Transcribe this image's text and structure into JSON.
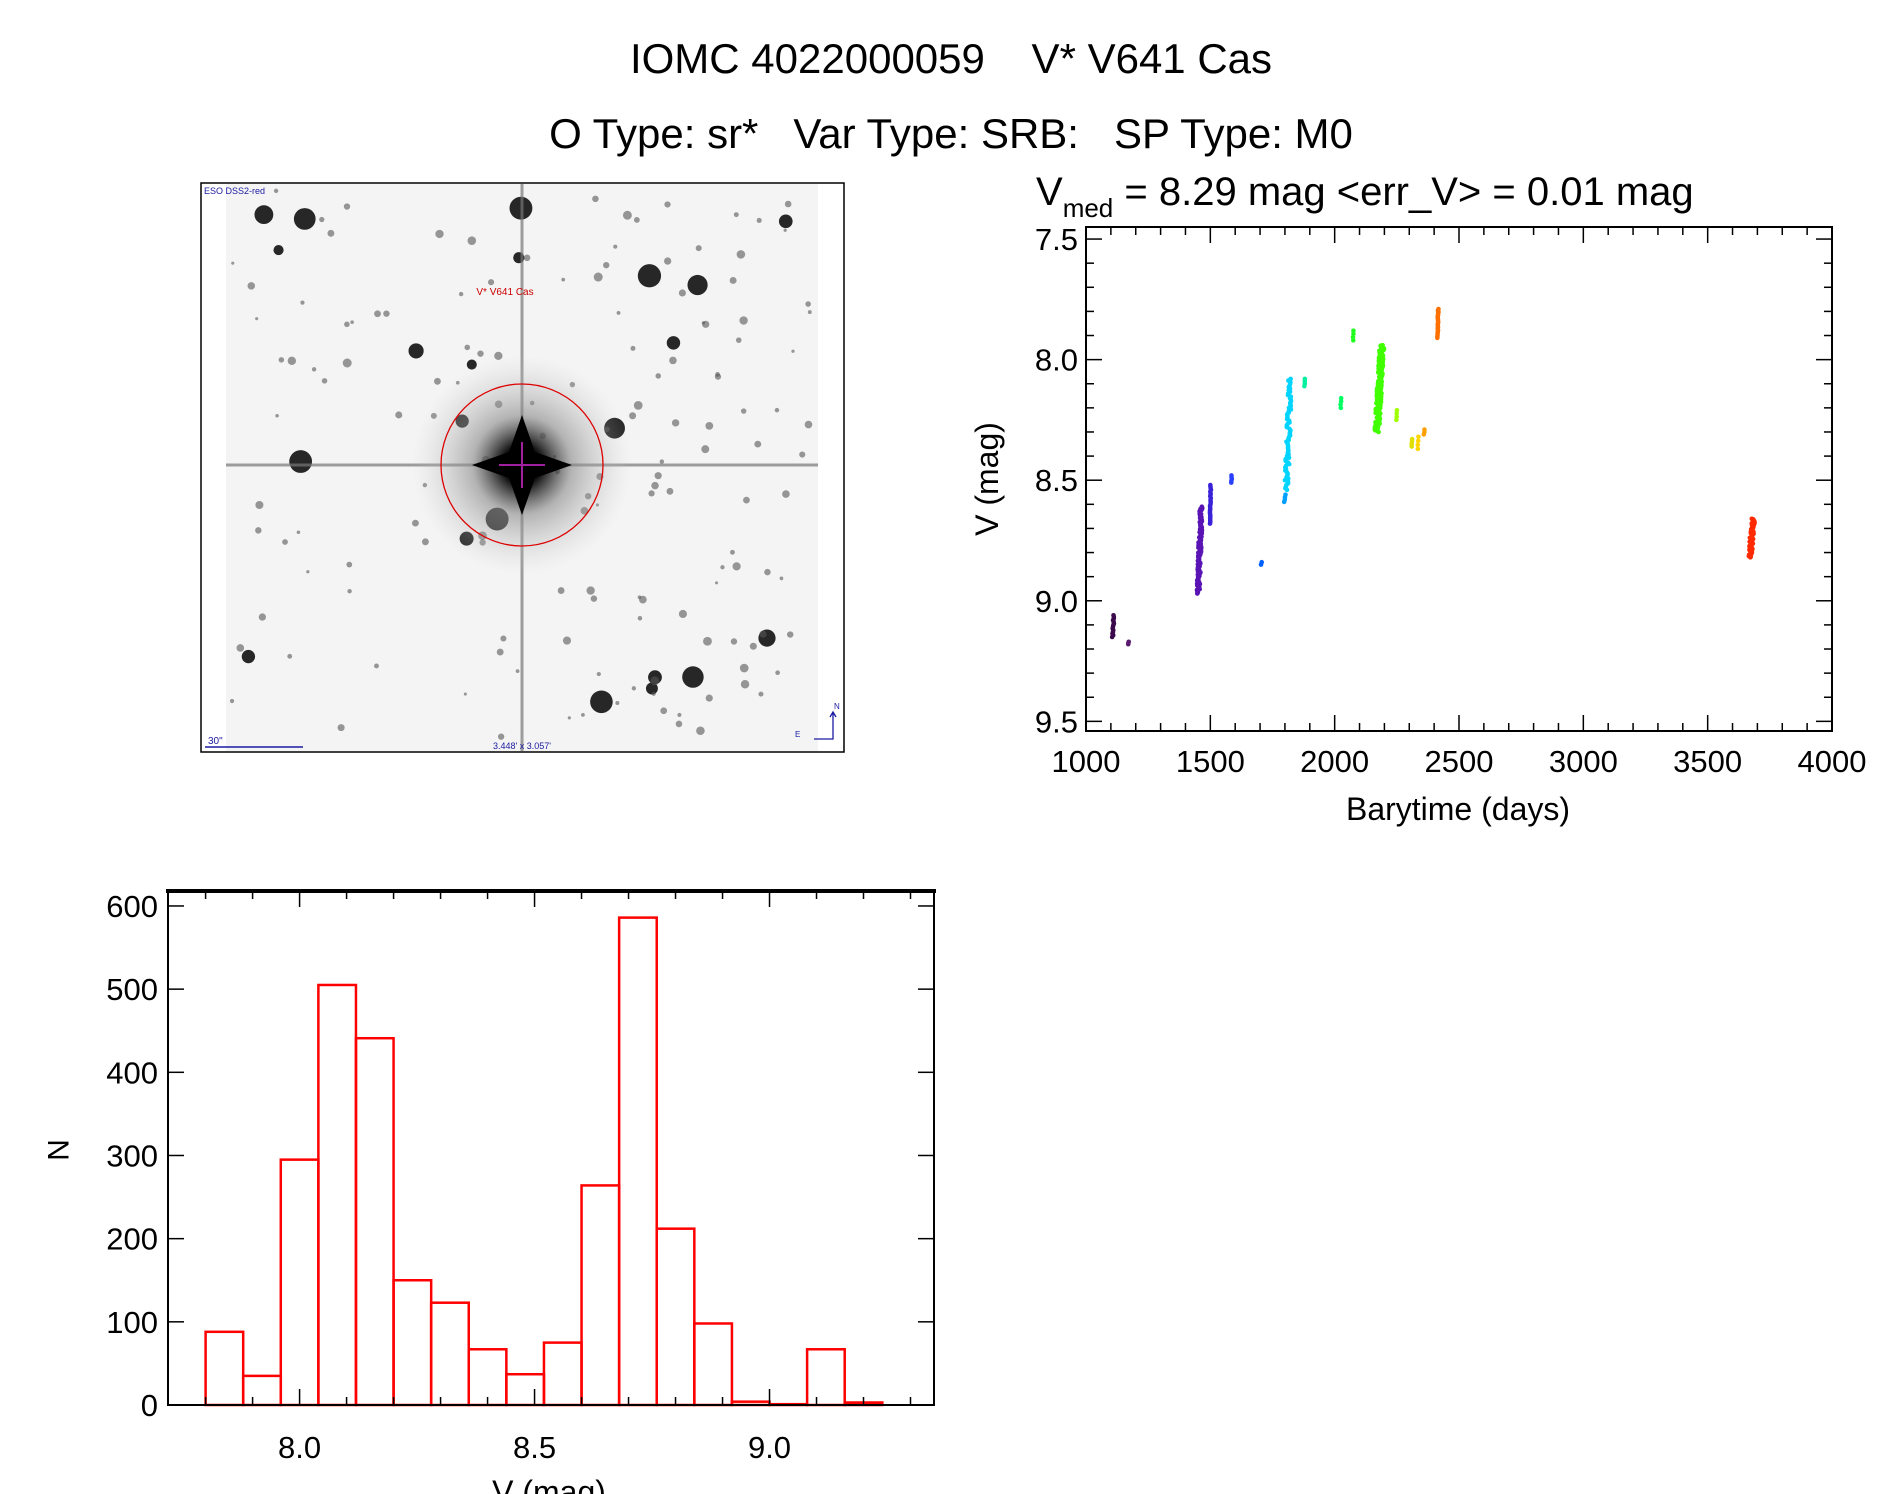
{
  "title": {
    "line1": "IOMC 4022000059    V* V641 Cas",
    "line2": "O Type: sr*   Var Type: SRB:   SP Type: M0"
  },
  "finder_image": {
    "survey_label": "ESO DSS2-red",
    "target_label": "V* V641 Cas",
    "scale_label": "30\"",
    "size_label": "3.448' x 3.057'",
    "north_label": "N",
    "east_label": "E"
  },
  "chart_data": [
    {
      "type": "scatter",
      "title_main": "V",
      "title_sub": "med",
      "title_rest": " = 8.29 mag <err_V> = 0.01 mag",
      "xlabel": "Barytime (days)",
      "ylabel": "V (mag)",
      "xlim": [
        1000,
        4000
      ],
      "ylim": [
        7.45,
        9.54
      ],
      "y_inverted": true,
      "xticks": [
        1000,
        1500,
        2000,
        2500,
        3000,
        3500,
        4000
      ],
      "xtick_labels": [
        "1000",
        "1500",
        "2000",
        "2500",
        "3000",
        "3500",
        "4000"
      ],
      "yticks": [
        7.5,
        8.0,
        8.5,
        9.0,
        9.5
      ],
      "ytick_labels": [
        "7.5",
        "8.0",
        "8.5",
        "9.0",
        "9.5"
      ],
      "clusters": [
        {
          "x": [
            1105,
            1115
          ],
          "y": [
            9.06,
            9.15
          ],
          "n": 14,
          "color": "#3c0a4c"
        },
        {
          "x": [
            1168,
            1172
          ],
          "y": [
            9.17,
            9.18
          ],
          "n": 3,
          "color": "#5a1a6e"
        },
        {
          "x": [
            1445,
            1470
          ],
          "y": [
            8.61,
            8.97
          ],
          "n": 120,
          "color": "#5a14b4"
        },
        {
          "x": [
            1497,
            1503
          ],
          "y": [
            8.52,
            8.68
          ],
          "n": 25,
          "color": "#3a22d8"
        },
        {
          "x": [
            1582,
            1588
          ],
          "y": [
            8.48,
            8.51
          ],
          "n": 5,
          "color": "#2a40ff"
        },
        {
          "x": [
            1703,
            1707
          ],
          "y": [
            8.84,
            8.85
          ],
          "n": 2,
          "color": "#0060ff"
        },
        {
          "x": [
            1797,
            1803
          ],
          "y": [
            8.56,
            8.59
          ],
          "n": 4,
          "color": "#00a0ff"
        },
        {
          "x": [
            1798,
            1830
          ],
          "y": [
            8.08,
            8.54
          ],
          "n": 70,
          "color": "#00d4ff"
        },
        {
          "x": [
            1878,
            1882
          ],
          "y": [
            8.08,
            8.11
          ],
          "n": 4,
          "color": "#00f0a0"
        },
        {
          "x": [
            2023,
            2027
          ],
          "y": [
            8.16,
            8.2
          ],
          "n": 4,
          "color": "#00ff60"
        },
        {
          "x": [
            2073,
            2077
          ],
          "y": [
            7.88,
            7.92
          ],
          "n": 4,
          "color": "#20ff20"
        },
        {
          "x": [
            2160,
            2200
          ],
          "y": [
            7.94,
            8.3
          ],
          "n": 160,
          "color": "#40ff00"
        },
        {
          "x": [
            2248,
            2252
          ],
          "y": [
            8.21,
            8.25
          ],
          "n": 4,
          "color": "#a0ff00"
        },
        {
          "x": [
            2308,
            2312
          ],
          "y": [
            8.33,
            8.36
          ],
          "n": 4,
          "color": "#e0e000"
        },
        {
          "x": [
            2333,
            2337
          ],
          "y": [
            8.32,
            8.37
          ],
          "n": 4,
          "color": "#ffd400"
        },
        {
          "x": [
            2358,
            2362
          ],
          "y": [
            8.29,
            8.31
          ],
          "n": 3,
          "color": "#ffa000"
        },
        {
          "x": [
            2412,
            2418
          ],
          "y": [
            7.79,
            7.91
          ],
          "n": 20,
          "color": "#ff7000"
        },
        {
          "x": [
            3662,
            3692
          ],
          "y": [
            8.66,
            8.82
          ],
          "n": 60,
          "color": "#ff2a00"
        }
      ]
    },
    {
      "type": "bar",
      "histogram": true,
      "xlabel": "V (mag)",
      "ylabel": "N",
      "xlim": [
        7.72,
        9.35
      ],
      "ylim": [
        0,
        618
      ],
      "bin_edges": [
        7.8,
        7.88,
        7.96,
        8.04,
        8.12,
        8.2,
        8.28,
        8.36,
        8.44,
        8.52,
        8.6,
        8.68,
        8.76,
        8.84,
        8.92,
        9.0,
        9.08,
        9.16,
        9.24
      ],
      "values": [
        88,
        35,
        295,
        505,
        441,
        150,
        123,
        67,
        37,
        75,
        264,
        586,
        212,
        98,
        4,
        1,
        67,
        3
      ],
      "bar_color": "#ff0000",
      "xticks": [
        8.0,
        8.5,
        9.0
      ],
      "xtick_labels": [
        "8.0",
        "8.5",
        "9.0"
      ],
      "yticks": [
        0,
        100,
        200,
        300,
        400,
        500,
        600
      ],
      "ytick_labels": [
        "0",
        "100",
        "200",
        "300",
        "400",
        "500",
        "600"
      ]
    }
  ]
}
